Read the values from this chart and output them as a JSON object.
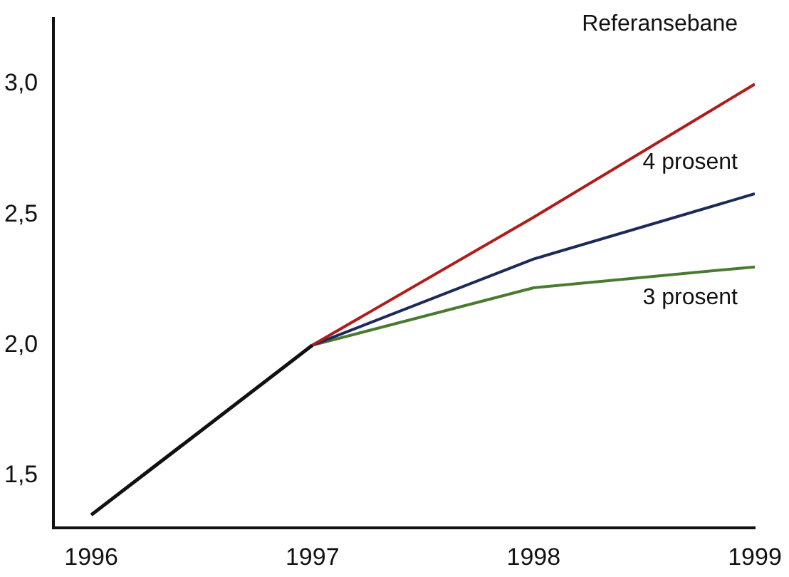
{
  "chart_data": {
    "type": "line",
    "xlim": [
      1995.83,
      1999
    ],
    "xticks": [
      1996,
      1997,
      1998,
      1999
    ],
    "ylim": [
      1.3,
      3.25
    ],
    "yticks": [
      {
        "value": 1.5,
        "label": "1,5"
      },
      {
        "value": 2.0,
        "label": "2,0"
      },
      {
        "value": 2.5,
        "label": "2,5"
      },
      {
        "value": 3.0,
        "label": "3,0"
      }
    ],
    "grid": false,
    "legend": false,
    "marker": "none",
    "line_style": "solid",
    "series": [
      {
        "color": "#111111",
        "x": [
          1996,
          1997
        ],
        "values": [
          1.35,
          2.0
        ]
      },
      {
        "name": "Referansebane",
        "color": "#b01c1c",
        "x": [
          1997,
          1998,
          1999
        ],
        "values": [
          2.0,
          2.49,
          3.0
        ]
      },
      {
        "name": "4 prosent",
        "color": "#1c2a5a",
        "x": [
          1997,
          1998,
          1999
        ],
        "values": [
          2.0,
          2.33,
          2.58
        ]
      },
      {
        "name": "3 prosent",
        "color": "#4a7a30",
        "x": [
          1997,
          1998,
          1999
        ],
        "values": [
          2.0,
          2.22,
          2.3
        ]
      }
    ]
  }
}
